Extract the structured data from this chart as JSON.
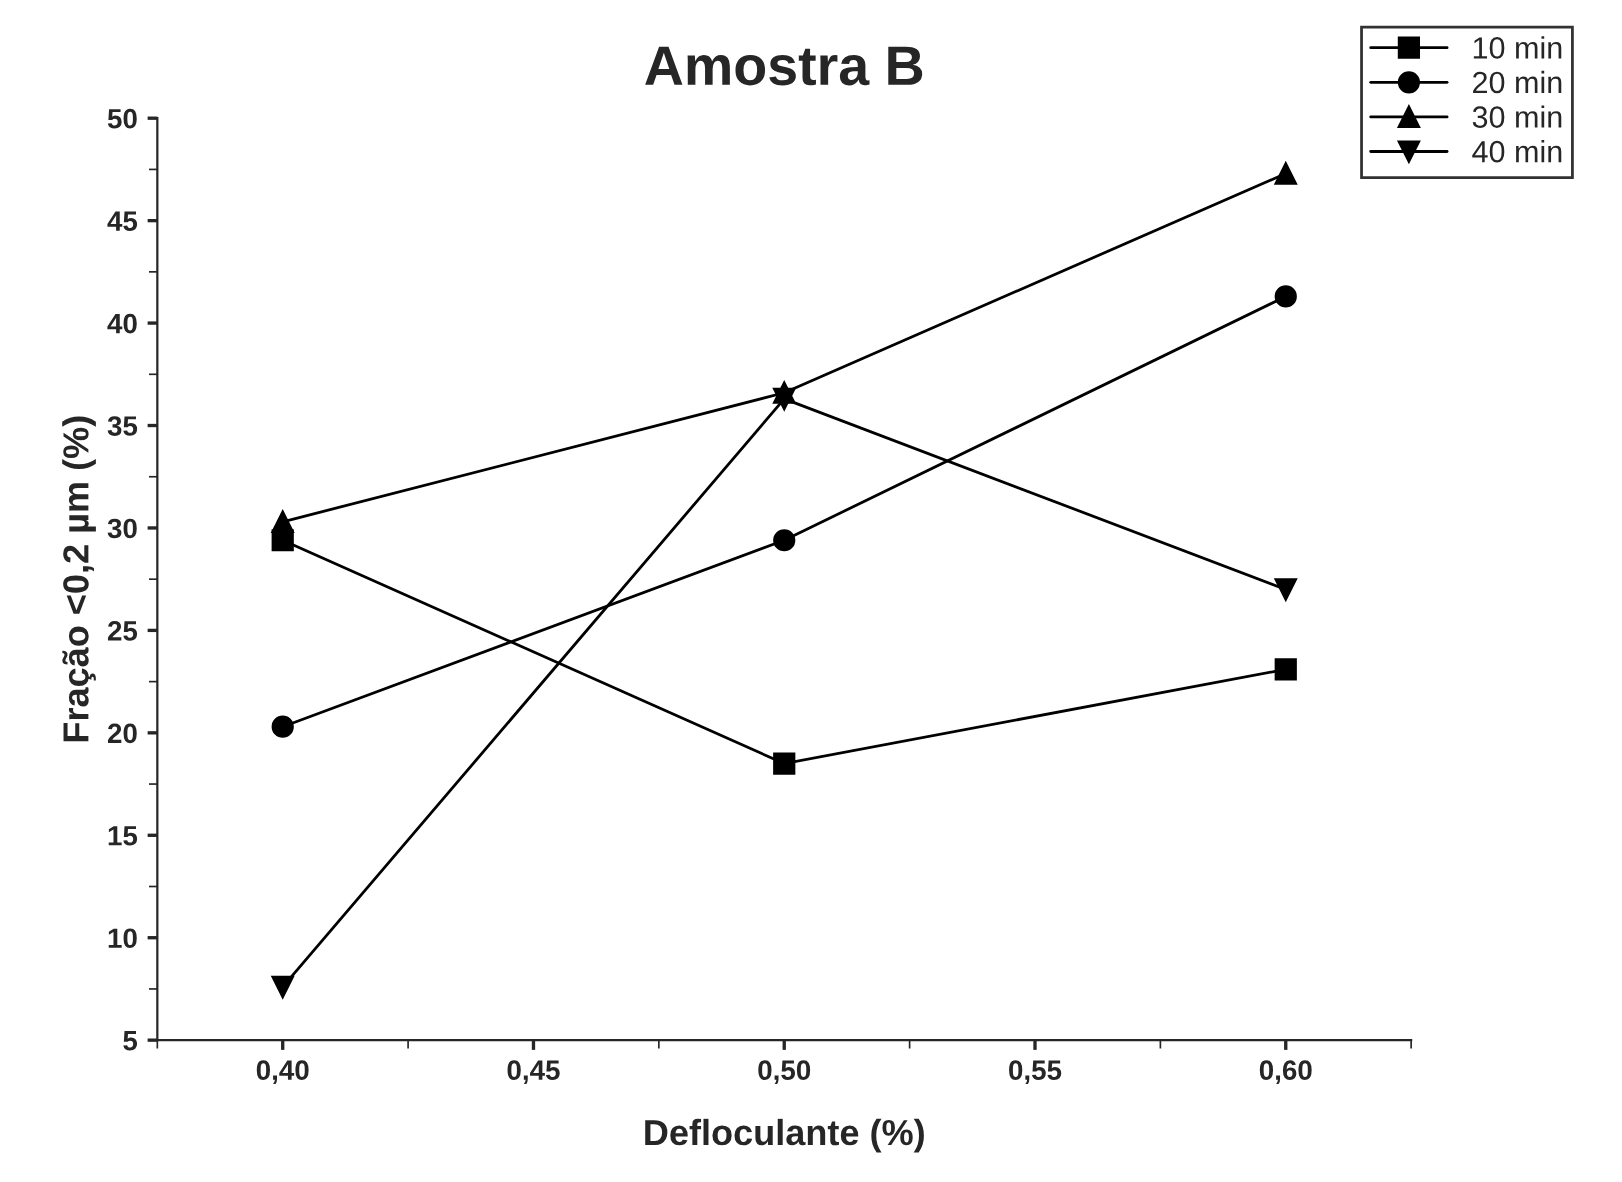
{
  "chart_data": {
    "type": "line",
    "title": "Amostra B",
    "xlabel": "Defloculante (%)",
    "ylabel": "Fração <0,2 µm (%)",
    "x": [
      0.4,
      0.5,
      0.6
    ],
    "series": [
      {
        "name": "10 min",
        "color": "#000000",
        "marker": "square",
        "values": [
          29.4,
          18.5,
          23.1
        ]
      },
      {
        "name": "20 min",
        "color": "#000000",
        "marker": "circle",
        "values": [
          20.3,
          29.4,
          41.3
        ]
      },
      {
        "name": "30 min",
        "color": "#000000",
        "marker": "triangle",
        "values": [
          30.3,
          36.6,
          47.3
        ]
      },
      {
        "name": "40 min",
        "color": "#000000",
        "marker": "triangle_down",
        "values": [
          7.6,
          36.3,
          27.0
        ]
      }
    ],
    "xlim": [
      0.375,
      0.625
    ],
    "xticks": [
      {
        "value": 0.4,
        "label": "0,40"
      },
      {
        "value": 0.45,
        "label": "0,45"
      },
      {
        "value": 0.5,
        "label": "0,50"
      },
      {
        "value": 0.55,
        "label": "0,55"
      },
      {
        "value": 0.6,
        "label": "0,60"
      }
    ],
    "ylim": [
      5,
      50
    ],
    "yticks": [
      5,
      10,
      15,
      20,
      25,
      30,
      35,
      40,
      45,
      50
    ],
    "grid": false,
    "legend": "top right",
    "line_style": "solid"
  }
}
